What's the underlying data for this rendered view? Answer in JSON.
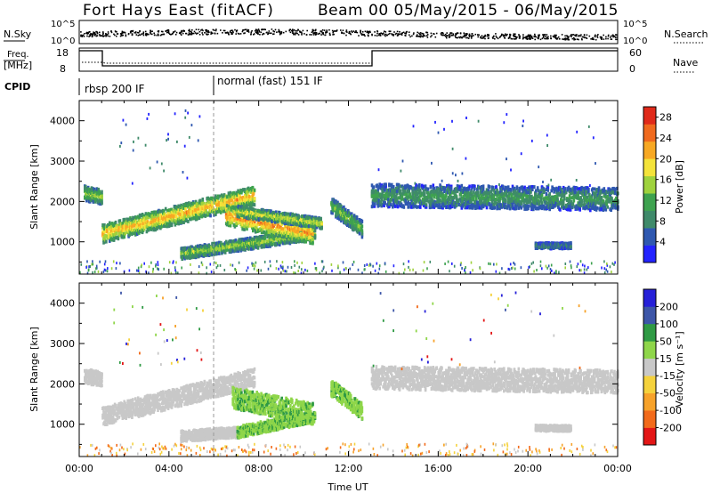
{
  "header": {
    "station": "Fort Hays East (fitACF)",
    "beam_date": "Beam 00 05/May/2015 - 06/May/2015"
  },
  "summary": {
    "nsky_label": "N.Sky",
    "nsky_ticks": [
      "10^5",
      "10^0"
    ],
    "nsearch_label": "N.Search",
    "nsearch_ticks": [
      "10^5",
      "10^0"
    ],
    "freq_label_1": "Freq.",
    "freq_label_2": "[MHz]",
    "freq_ticks": [
      "18",
      "8"
    ],
    "nave_label": "Nave",
    "nave_ticks": [
      "60",
      "0"
    ],
    "cpid_label": "CPID",
    "cpid_segments": [
      {
        "label": "rbsp 200 IF",
        "start_h": 0.0
      },
      {
        "label": "normal (fast) 151 IF",
        "start_h": 6.0
      }
    ]
  },
  "colors": {
    "power": [
      "#2323ff",
      "#2f58b0",
      "#3f8a6a",
      "#3ea24f",
      "#9fd23d",
      "#f4e33a",
      "#f7a823",
      "#f06a1e",
      "#e02a1a"
    ],
    "velocity": [
      "#e31616",
      "#f26a1a",
      "#f7a22a",
      "#f5d23c",
      "#c8c8c8",
      "#8fd64a",
      "#2f9a44",
      "#3d56a8",
      "#2620d8"
    ],
    "velocity_ground": "#c8c8c8"
  },
  "chart_data": [
    {
      "type": "heatmap",
      "quantity": "Power",
      "ylabel": "Slant Range [km]",
      "yticks": [
        "1000",
        "2000",
        "3000",
        "4000"
      ],
      "ylim": [
        200,
        4500
      ],
      "xlim_hours": [
        0,
        24
      ],
      "colorbar": {
        "label": "Power [dB]",
        "ticks": [
          "4",
          "8",
          "12",
          "16",
          "20",
          "24",
          "28"
        ],
        "range": [
          0,
          30
        ]
      },
      "bands": [
        {
          "start_h": 0.2,
          "end_h": 1.0,
          "center_km": 2200,
          "center_km_end": 2100,
          "half_width_km": 180,
          "peak_db": 16
        },
        {
          "start_h": 1.0,
          "end_h": 7.8,
          "center_km": 1200,
          "center_km_end": 2150,
          "half_width_km": 230,
          "peak_db": 22
        },
        {
          "start_h": 4.5,
          "end_h": 10.5,
          "center_km": 700,
          "center_km_end": 1200,
          "half_width_km": 140,
          "peak_db": 16
        },
        {
          "start_h": 6.5,
          "end_h": 10.4,
          "center_km": 1650,
          "center_km_end": 1200,
          "half_width_km": 260,
          "peak_db": 24
        },
        {
          "start_h": 7.0,
          "end_h": 10.8,
          "center_km": 1750,
          "center_km_end": 1450,
          "half_width_km": 130,
          "peak_db": 18
        },
        {
          "start_h": 11.2,
          "end_h": 12.6,
          "center_km": 1900,
          "center_km_end": 1300,
          "half_width_km": 200,
          "peak_db": 14
        },
        {
          "start_h": 13.0,
          "end_h": 24.0,
          "center_km": 2150,
          "center_km_end": 2050,
          "half_width_km": 280,
          "peak_db": 11
        },
        {
          "start_h": 20.3,
          "end_h": 21.9,
          "center_km": 900,
          "center_km_end": 900,
          "half_width_km": 70,
          "peak_db": 9
        }
      ]
    },
    {
      "type": "heatmap",
      "quantity": "Velocity",
      "ylabel": "Slant Range [km]",
      "yticks": [
        "1000",
        "2000",
        "3000",
        "4000"
      ],
      "ylim": [
        200,
        4500
      ],
      "xlim_hours": [
        0,
        24
      ],
      "xlabel": "Time UT",
      "xticks": [
        "00:00",
        "04:00",
        "08:00",
        "12:00",
        "16:00",
        "20:00",
        "00:00"
      ],
      "colorbar": {
        "label": "Velocity [m s⁻¹]",
        "ticks": [
          "-200",
          "-100",
          "-50",
          "-15",
          "15",
          "50",
          "100",
          "200"
        ],
        "range": [
          -250,
          250
        ]
      },
      "bands": [
        {
          "start_h": 0.2,
          "end_h": 1.0,
          "center_km": 2200,
          "center_km_end": 2100,
          "half_width_km": 180,
          "kind": "ground"
        },
        {
          "start_h": 1.0,
          "end_h": 7.8,
          "center_km": 1200,
          "center_km_end": 2150,
          "half_width_km": 230,
          "kind": "ground"
        },
        {
          "start_h": 4.5,
          "end_h": 7.0,
          "center_km": 700,
          "center_km_end": 800,
          "half_width_km": 130,
          "kind": "ground"
        },
        {
          "start_h": 7.0,
          "end_h": 10.5,
          "center_km": 800,
          "center_km_end": 1200,
          "half_width_km": 140,
          "kind": "green"
        },
        {
          "start_h": 6.8,
          "end_h": 10.4,
          "center_km": 1650,
          "center_km_end": 1250,
          "half_width_km": 260,
          "kind": "green"
        },
        {
          "start_h": 11.2,
          "end_h": 12.6,
          "center_km": 1900,
          "center_km_end": 1300,
          "half_width_km": 200,
          "kind": "green"
        },
        {
          "start_h": 13.0,
          "end_h": 24.0,
          "center_km": 2150,
          "center_km_end": 2050,
          "half_width_km": 280,
          "kind": "ground"
        },
        {
          "start_h": 20.3,
          "end_h": 21.9,
          "center_km": 900,
          "center_km_end": 900,
          "half_width_km": 70,
          "kind": "ground"
        }
      ]
    }
  ]
}
